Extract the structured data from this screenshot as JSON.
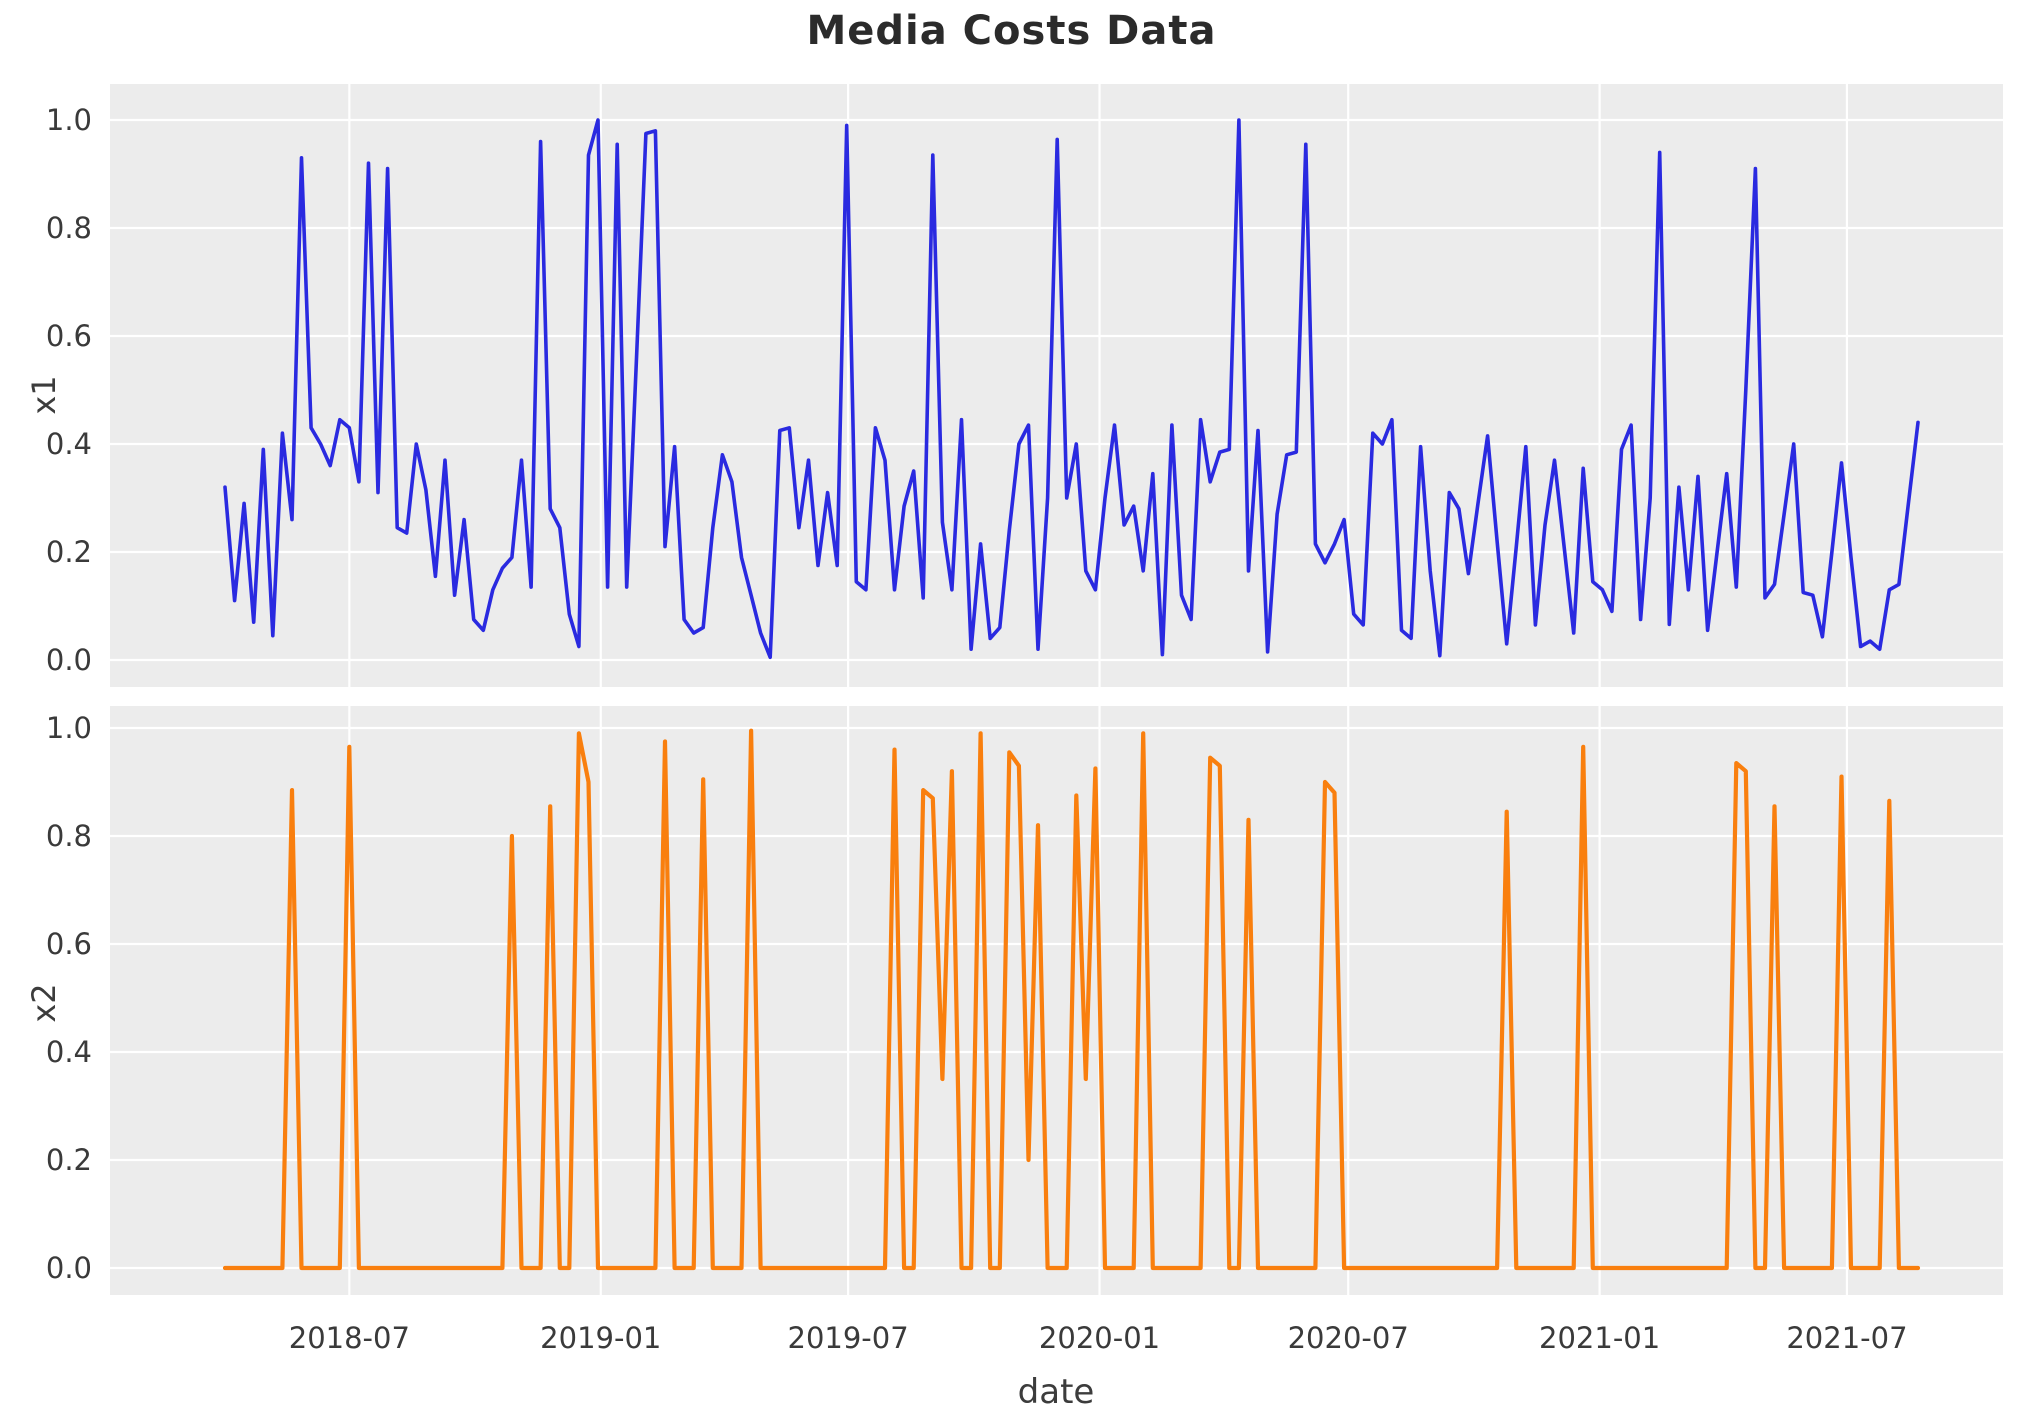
{
  "figure": {
    "title": "Media Costs Data",
    "background": "#ffffff",
    "plot_background": "#ececec",
    "gridline_color": "#ffffff"
  },
  "chart_data": {
    "type": "line",
    "title": "Media Costs Data",
    "xlabel": "date",
    "x_start_date": "2018-04-01",
    "x_freq_days": 7,
    "n_points": 178,
    "x_tick_labels": [
      "2018-07",
      "2019-01",
      "2019-07",
      "2020-01",
      "2020-07",
      "2021-01",
      "2021-07"
    ],
    "y_tick_labels": [
      "1.0",
      "0.8",
      "0.6",
      "0.4",
      "0.2",
      "0.0"
    ],
    "y_tick_values": [
      1.0,
      0.8,
      0.6,
      0.4,
      0.2,
      0.0
    ],
    "grid": true,
    "legend": "none",
    "subplots": [
      {
        "ylabel": "x1",
        "color": "#2a2ae0",
        "ylim": [
          0.0,
          1.0
        ],
        "values": [
          0.32,
          0.11,
          0.29,
          0.07,
          0.39,
          0.045,
          0.42,
          0.26,
          0.93,
          0.43,
          0.4,
          0.36,
          0.445,
          0.43,
          0.33,
          0.92,
          0.31,
          0.91,
          0.245,
          0.235,
          0.4,
          0.315,
          0.155,
          0.37,
          0.12,
          0.26,
          0.075,
          0.055,
          0.13,
          0.17,
          0.19,
          0.37,
          0.135,
          0.96,
          0.28,
          0.245,
          0.085,
          0.025,
          0.935,
          1.0,
          0.135,
          0.955,
          0.135,
          0.55,
          0.975,
          0.98,
          0.21,
          0.395,
          0.075,
          0.05,
          0.06,
          0.245,
          0.38,
          0.33,
          0.19,
          0.12,
          0.05,
          0.005,
          0.425,
          0.43,
          0.245,
          0.37,
          0.175,
          0.31,
          0.175,
          0.99,
          0.145,
          0.13,
          0.43,
          0.37,
          0.13,
          0.285,
          0.35,
          0.115,
          0.935,
          0.255,
          0.13,
          0.445,
          0.02,
          0.215,
          0.04,
          0.06,
          0.24,
          0.4,
          0.435,
          0.02,
          0.3,
          0.964,
          0.3,
          0.4,
          0.165,
          0.13,
          0.3,
          0.435,
          0.25,
          0.285,
          0.165,
          0.345,
          0.01,
          0.435,
          0.12,
          0.075,
          0.445,
          0.33,
          0.385,
          0.39,
          1.0,
          0.165,
          0.425,
          0.015,
          0.27,
          0.38,
          0.385,
          0.955,
          0.215,
          0.18,
          0.215,
          0.26,
          0.085,
          0.065,
          0.42,
          0.4,
          0.445,
          0.055,
          0.04,
          0.395,
          0.165,
          0.008,
          0.31,
          0.28,
          0.16,
          0.29,
          0.415,
          0.22,
          0.03,
          0.21,
          0.395,
          0.065,
          0.25,
          0.37,
          0.21,
          0.05,
          0.355,
          0.145,
          0.13,
          0.09,
          0.39,
          0.435,
          0.075,
          0.3,
          0.94,
          0.066,
          0.32,
          0.13,
          0.34,
          0.055,
          0.2,
          0.345,
          0.135,
          0.5,
          0.91,
          0.115,
          0.14,
          0.27,
          0.4,
          0.125,
          0.12,
          0.043,
          0.2,
          0.365,
          0.19,
          0.025,
          0.035,
          0.02,
          0.13,
          0.14,
          0.29,
          0.44
        ]
      },
      {
        "ylabel": "x2",
        "color": "#f97f0e",
        "ylim": [
          0.0,
          1.0
        ],
        "values": [
          0,
          0,
          0,
          0,
          0,
          0,
          0,
          0.885,
          0,
          0,
          0,
          0,
          0,
          0.965,
          0,
          0,
          0,
          0,
          0,
          0,
          0,
          0,
          0,
          0,
          0,
          0,
          0,
          0,
          0,
          0,
          0.8,
          0,
          0,
          0,
          0.855,
          0,
          0,
          0.99,
          0.9,
          0,
          0,
          0,
          0,
          0,
          0,
          0,
          0.975,
          0,
          0,
          0,
          0.905,
          0,
          0,
          0,
          0,
          0.995,
          0,
          0,
          0,
          0,
          0,
          0,
          0,
          0,
          0,
          0,
          0,
          0,
          0,
          0,
          0.96,
          0,
          0,
          0.885,
          0.87,
          0.35,
          0.92,
          0,
          0,
          0.99,
          0,
          0,
          0.955,
          0.93,
          0.2,
          0.82,
          0,
          0,
          0,
          0.875,
          0.35,
          0.925,
          0,
          0,
          0,
          0,
          0.99,
          0,
          0,
          0,
          0,
          0,
          0,
          0.945,
          0.93,
          0,
          0,
          0.83,
          0,
          0,
          0,
          0,
          0,
          0,
          0,
          0.9,
          0.88,
          0,
          0,
          0,
          0,
          0,
          0,
          0,
          0,
          0,
          0,
          0,
          0,
          0,
          0,
          0,
          0,
          0,
          0.845,
          0,
          0,
          0,
          0,
          0,
          0,
          0,
          0.965,
          0,
          0,
          0,
          0,
          0,
          0,
          0,
          0,
          0,
          0,
          0,
          0,
          0,
          0,
          0,
          0.935,
          0.92,
          0,
          0,
          0.855,
          0,
          0,
          0,
          0,
          0,
          0,
          0.91,
          0,
          0,
          0,
          0,
          0.865,
          0,
          0,
          0
        ]
      }
    ]
  }
}
